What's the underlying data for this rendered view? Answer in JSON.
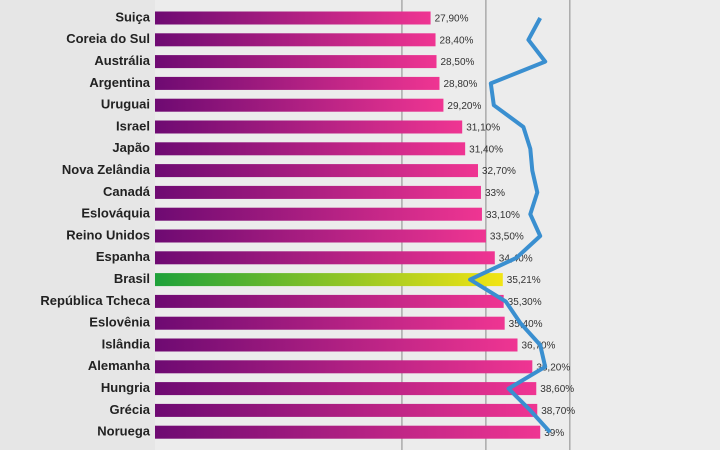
{
  "chart_data": {
    "type": "bar",
    "orientation": "horizontal",
    "categories": [
      "Suiça",
      "Coreia do Sul",
      "Austrália",
      "Argentina",
      "Uruguai",
      "Israel",
      "Japão",
      "Nova Zelândia",
      "Canadá",
      "Eslováquia",
      "Reino Unidos",
      "Espanha",
      "Brasil",
      "República Tcheca",
      "Eslovênia",
      "Islândia",
      "Alemanha",
      "Hungria",
      "Grécia",
      "Noruega"
    ],
    "values": [
      27.9,
      28.4,
      28.5,
      28.8,
      29.2,
      31.1,
      31.4,
      32.7,
      33,
      33.1,
      33.5,
      34.4,
      35.21,
      35.3,
      35.4,
      36.7,
      38.2,
      38.6,
      38.7,
      39
    ],
    "value_labels": [
      "27,90%",
      "28,40%",
      "28,50%",
      "28,80%",
      "29,20%",
      "31,10%",
      "31,40%",
      "32,70%",
      "33%",
      "33,10%",
      "33,50%",
      "34,40%",
      "35,21%",
      "35,30%",
      "35,40%",
      "36,70%",
      "38,20%",
      "38,60%",
      "38,70%",
      "39%"
    ],
    "colors": [
      "#6e0a72",
      "#ef3592"
    ],
    "highlight_category": "Brasil",
    "highlight_colors": [
      "#1ea13a",
      "#f2e414"
    ],
    "line_series": {
      "color": "#3a8fd0",
      "values": [
        39.0,
        37.8,
        39.5,
        34.0,
        34.3,
        37.3,
        38.0,
        38.2,
        38.7,
        38.0,
        39.0,
        36.6,
        31.9,
        35.5,
        37.0,
        39.0,
        39.5,
        35.8,
        38.0,
        40.0
      ]
    },
    "xlim": [
      0,
      57.2
    ],
    "xticks": [
      25,
      33.5,
      42
    ],
    "grid": true
  }
}
